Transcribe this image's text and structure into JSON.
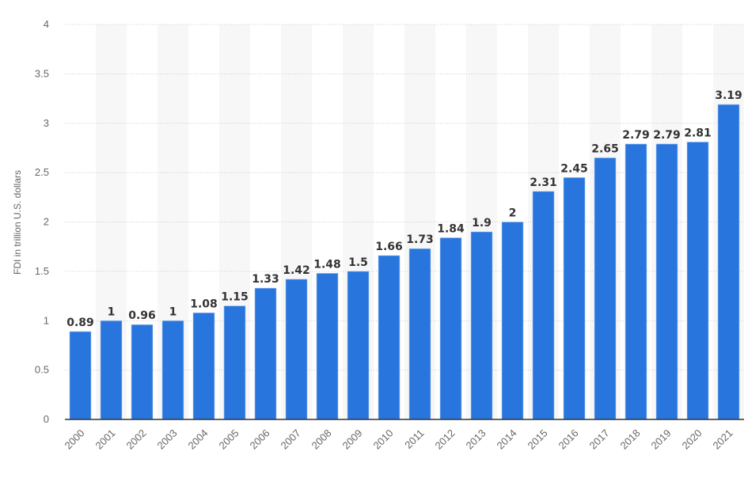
{
  "chart_data": {
    "type": "bar",
    "title": "",
    "xlabel": "",
    "ylabel": "FDI in trillion U.S. dollars",
    "ylim": [
      0,
      4
    ],
    "yticks": [
      0,
      0.5,
      1,
      1.5,
      2,
      2.5,
      3,
      3.5,
      4
    ],
    "grid": true,
    "categories": [
      "2000",
      "2001",
      "2002",
      "2003",
      "2004",
      "2005",
      "2006",
      "2007",
      "2008",
      "2009",
      "2010",
      "2011",
      "2012",
      "2013",
      "2014",
      "2015",
      "2016",
      "2017",
      "2018",
      "2019",
      "2020",
      "2021"
    ],
    "values": [
      0.89,
      1,
      0.96,
      1,
      1.08,
      1.15,
      1.33,
      1.42,
      1.48,
      1.5,
      1.66,
      1.73,
      1.84,
      1.9,
      2,
      2.31,
      2.45,
      2.65,
      2.79,
      2.79,
      2.81,
      3.19
    ],
    "colors": {
      "bar": "#2876dd",
      "band": "#f7f7f7",
      "grid": "#cccccc",
      "axis": "#333333"
    }
  }
}
